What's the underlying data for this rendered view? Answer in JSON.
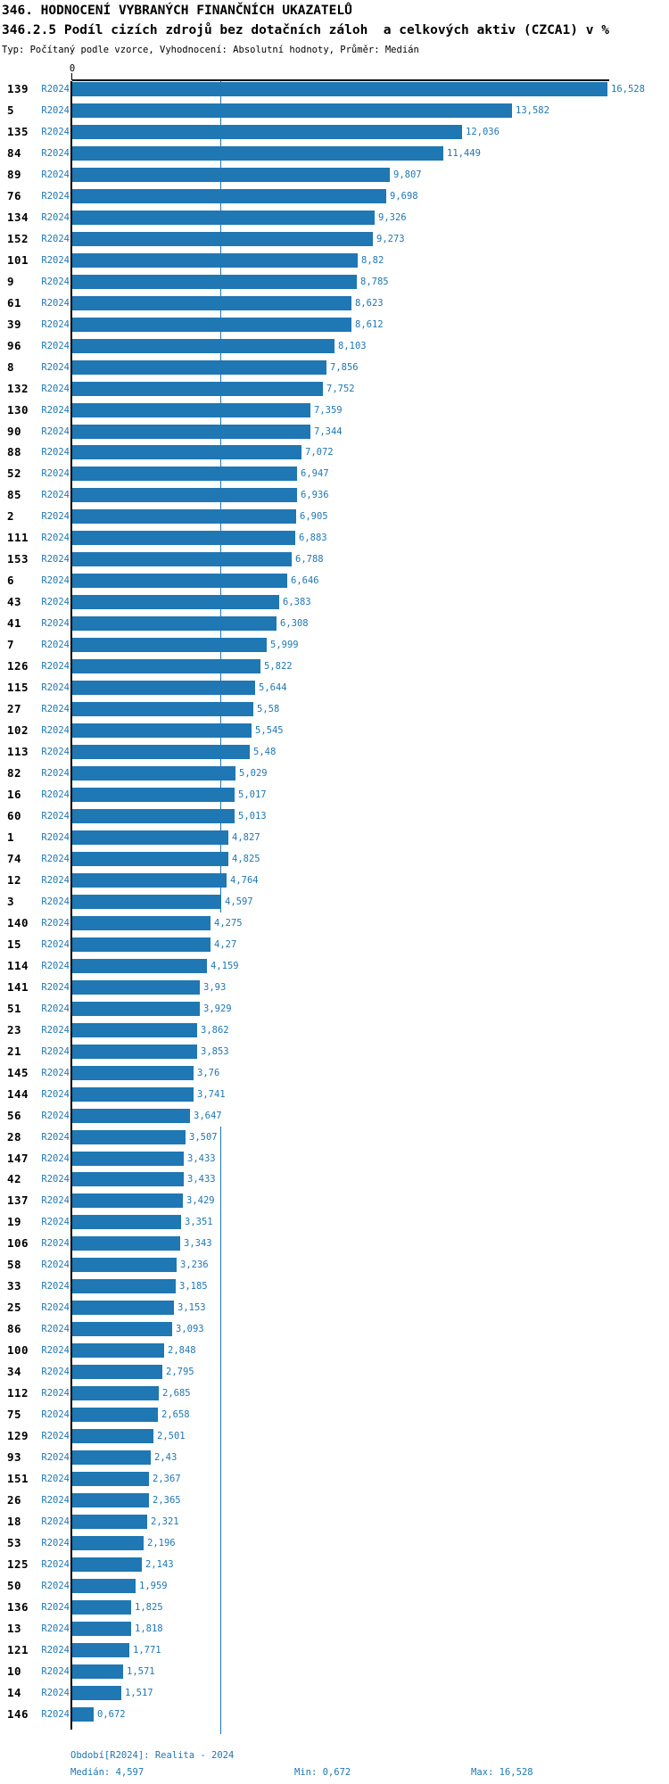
{
  "header": {
    "title": "346. HODNOCENÍ VYBRANÝCH FINANČNÍCH UKAZATELŮ",
    "subtitle": "346.2.5 Podíl cizích zdrojů bez dotačních záloh  a celkových aktiv (CZCA1) v %",
    "type_info": "Typ: Počítaný podle vzorce, Vyhodnocení: Absolutní hodnoty, Průměr: Medián"
  },
  "axis": {
    "zero_label": "0"
  },
  "chart_data": {
    "type": "bar",
    "orientation": "horizontal",
    "series_label": "R2024",
    "categories": [
      "139",
      "5",
      "135",
      "84",
      "89",
      "76",
      "134",
      "152",
      "101",
      "9",
      "61",
      "39",
      "96",
      "8",
      "132",
      "130",
      "90",
      "88",
      "52",
      "85",
      "2",
      "111",
      "153",
      "6",
      "43",
      "41",
      "7",
      "126",
      "115",
      "27",
      "102",
      "113",
      "82",
      "16",
      "60",
      "1",
      "74",
      "12",
      "3",
      "140",
      "15",
      "114",
      "141",
      "51",
      "23",
      "21",
      "145",
      "144",
      "56",
      "28",
      "147",
      "42",
      "137",
      "19",
      "106",
      "58",
      "33",
      "25",
      "86",
      "100",
      "34",
      "112",
      "75",
      "129",
      "93",
      "151",
      "26",
      "18",
      "53",
      "125",
      "50",
      "136",
      "13",
      "121",
      "10",
      "14",
      "146"
    ],
    "values": [
      16.528,
      13.582,
      12.036,
      11.449,
      9.807,
      9.698,
      9.326,
      9.273,
      8.82,
      8.785,
      8.623,
      8.612,
      8.103,
      7.856,
      7.752,
      7.359,
      7.344,
      7.072,
      6.947,
      6.936,
      6.905,
      6.883,
      6.788,
      6.646,
      6.383,
      6.308,
      5.999,
      5.822,
      5.644,
      5.58,
      5.545,
      5.48,
      5.029,
      5.017,
      5.013,
      4.827,
      4.825,
      4.764,
      4.597,
      4.275,
      4.27,
      4.159,
      3.93,
      3.929,
      3.862,
      3.853,
      3.76,
      3.741,
      3.647,
      3.507,
      3.433,
      3.433,
      3.429,
      3.351,
      3.343,
      3.236,
      3.185,
      3.153,
      3.093,
      2.848,
      2.795,
      2.685,
      2.658,
      2.501,
      2.43,
      2.367,
      2.365,
      2.321,
      2.196,
      2.143,
      1.959,
      1.825,
      1.818,
      1.771,
      1.571,
      1.517,
      0.672
    ],
    "value_labels": [
      "16,528",
      "13,582",
      "12,036",
      "11,449",
      "9,807",
      "9,698",
      "9,326",
      "9,273",
      "8,82",
      "8,785",
      "8,623",
      "8,612",
      "8,103",
      "7,856",
      "7,752",
      "7,359",
      "7,344",
      "7,072",
      "6,947",
      "6,936",
      "6,905",
      "6,883",
      "6,788",
      "6,646",
      "6,383",
      "6,308",
      "5,999",
      "5,822",
      "5,644",
      "5,58",
      "5,545",
      "5,48",
      "5,029",
      "5,017",
      "5,013",
      "4,827",
      "4,825",
      "4,764",
      "4,597",
      "4,275",
      "4,27",
      "4,159",
      "3,93",
      "3,929",
      "3,862",
      "3,853",
      "3,76",
      "3,741",
      "3,647",
      "3,507",
      "3,433",
      "3,433",
      "3,429",
      "3,351",
      "3,343",
      "3,236",
      "3,185",
      "3,153",
      "3,093",
      "2,848",
      "2,795",
      "2,685",
      "2,658",
      "2,501",
      "2,43",
      "2,367",
      "2,365",
      "2,321",
      "2,196",
      "2,143",
      "1,959",
      "1,825",
      "1,818",
      "1,771",
      "1,571",
      "1,517",
      "0,672"
    ],
    "median": 4.597,
    "xlim": [
      0,
      16.528
    ],
    "title": "346.2.5 Podíl cizích zdrojů bez dotačních záloh  a celkových aktiv (CZCA1) v %",
    "xlabel": "",
    "ylabel": "",
    "grid": false,
    "legend_position": "none",
    "median_line": true
  },
  "footer": {
    "period": "Období[R2024]: Realita - 2024",
    "median": "Medián: 4,597",
    "min": "Min: 0,672",
    "max": "Max: 16,528"
  },
  "colors": {
    "bar": "#1f77b4",
    "accent_text": "#1f77b4",
    "axis": "#000000",
    "background": "#ffffff"
  }
}
